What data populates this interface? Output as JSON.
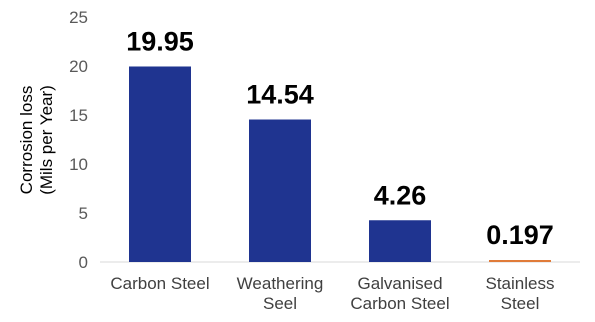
{
  "chart_data": {
    "type": "bar",
    "categories": [
      [
        "Carbon Steel"
      ],
      [
        "Weathering",
        "Seel"
      ],
      [
        "Galvanised",
        "Carbon Steel"
      ],
      [
        "Stainless",
        "Steel"
      ]
    ],
    "values": [
      19.95,
      14.54,
      4.26,
      0.197
    ],
    "data_labels": [
      "19.95",
      "14.54",
      "4.26",
      "0.197"
    ],
    "bar_colors": [
      "#1f3490",
      "#1f3490",
      "#1f3490",
      "#e07b39"
    ],
    "ylabel": [
      "Corrosion loss",
      "(Mils  per Year)"
    ],
    "ylim": [
      0,
      25
    ],
    "yticks": [
      0,
      5,
      10,
      15,
      20,
      25
    ],
    "grid": false,
    "legend": "none"
  }
}
